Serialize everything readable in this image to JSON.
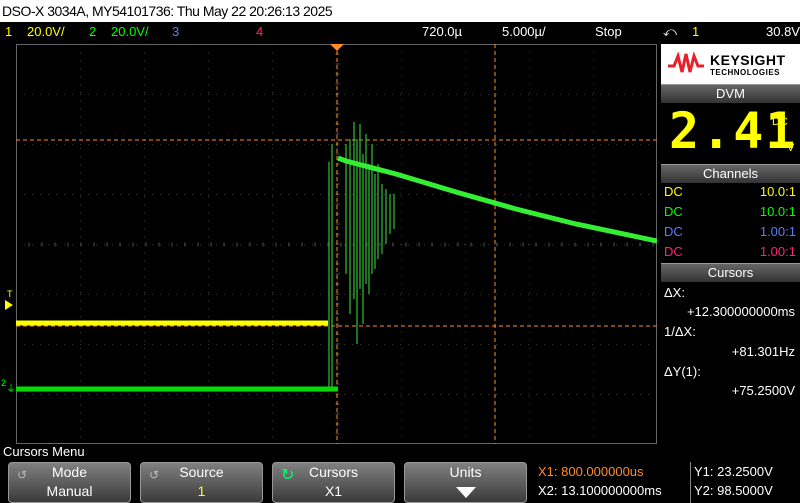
{
  "title": "DSO-X 3034A, MY54101736: Thu May 22 20:26:13 2025",
  "status": {
    "ch1_num": "1",
    "ch1_scale": "20.0V/",
    "ch2_num": "2",
    "ch2_scale": "20.0V/",
    "ch3_num": "3",
    "ch4_num": "4",
    "delay": "720.0µ",
    "timebase": "5.000µ/",
    "run_state": "Stop",
    "trigger_source": "1",
    "trigger_level": "30.8V"
  },
  "brand": {
    "name": "KEYSIGHT",
    "sub": "TECHNOLOGIES"
  },
  "dvm": {
    "header": "DVM",
    "value": "2.41",
    "coupling": "DC",
    "unit": "V"
  },
  "channels": {
    "header": "Channels",
    "rows": [
      {
        "coupling": "DC",
        "probe": "10.0:1",
        "color": "#ffff00"
      },
      {
        "coupling": "DC",
        "probe": "10.0:1",
        "color": "#00ff00"
      },
      {
        "coupling": "DC",
        "probe": "1.00:1",
        "color": "#5b7bff"
      },
      {
        "coupling": "DC",
        "probe": "1.00:1",
        "color": "#ff2277"
      }
    ]
  },
  "cursors": {
    "header": "Cursors",
    "dx_label": "ΔX:",
    "dx_value": "+12.300000000ms",
    "inv_dx_label": "1/ΔX:",
    "inv_dx_value": "+81.301Hz",
    "dy_label": "ΔY(1):",
    "dy_value": "+75.2500V"
  },
  "menu": {
    "title": "Cursors Menu",
    "mode_label": "Mode",
    "mode_value": "Manual",
    "source_label": "Source",
    "source_value": "1",
    "cursors_label": "Cursors",
    "cursors_value": "X1",
    "units_label": "Units"
  },
  "readout": {
    "x1": "X1: 800.000000us",
    "x2": "X2: 13.100000000ms",
    "y1": "Y1: 23.2500V",
    "y2": "Y2: 98.5000V"
  },
  "colors": {
    "ch1": "#ffff00",
    "ch2": "#00ff00",
    "ch3": "#5b7bff",
    "ch4": "#ff2277",
    "cursor": "#ff8c28",
    "x1_readout": "#ff8c28"
  },
  "markers": {
    "trigger_marker": "T",
    "ch1_marker": "1",
    "ch2_marker": "2"
  }
}
